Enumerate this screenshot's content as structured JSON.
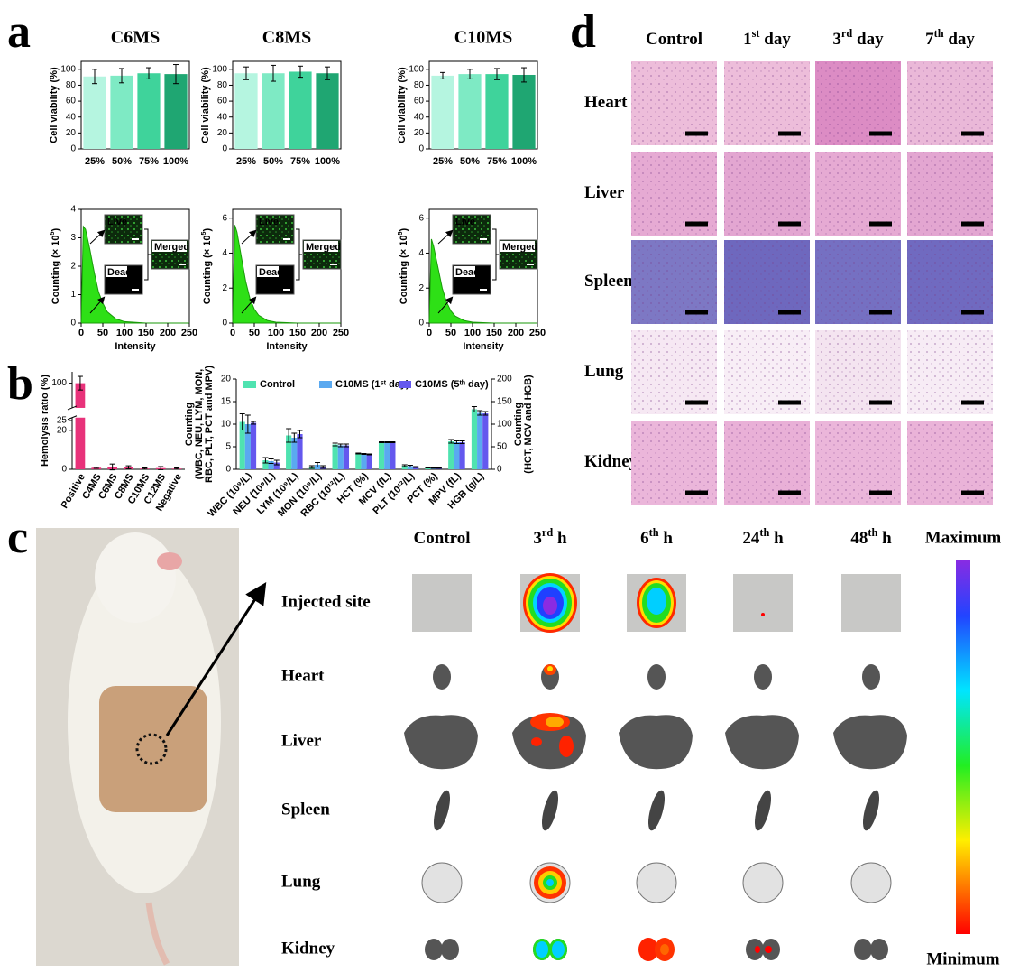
{
  "panel_labels": [
    "a",
    "b",
    "c",
    "d"
  ],
  "chart_data": [
    {
      "type": "bar",
      "title": "C6MS",
      "ylabel": "Cell viability (%)",
      "categories": [
        "25%",
        "50%",
        "75%",
        "100%"
      ],
      "values": [
        91,
        92,
        95,
        94
      ],
      "errors": [
        9,
        9,
        7,
        12
      ],
      "colors": [
        "#b5f5e0",
        "#7eeac4",
        "#3fd39b",
        "#1fa672"
      ],
      "ylim": [
        0,
        110
      ],
      "yticks": [
        0,
        20,
        40,
        60,
        80,
        100
      ]
    },
    {
      "type": "bar",
      "title": "C8MS",
      "ylabel": "Cell viability (%)",
      "categories": [
        "25%",
        "50%",
        "75%",
        "100%"
      ],
      "values": [
        95,
        95,
        97,
        95
      ],
      "errors": [
        8,
        10,
        7,
        8
      ],
      "colors": [
        "#b5f5e0",
        "#7eeac4",
        "#3fd39b",
        "#1fa672"
      ],
      "ylim": [
        0,
        110
      ],
      "yticks": [
        0,
        20,
        40,
        60,
        80,
        100
      ]
    },
    {
      "type": "bar",
      "title": "C10MS",
      "ylabel": "Cell viability (%)",
      "categories": [
        "25%",
        "50%",
        "75%",
        "100%"
      ],
      "values": [
        92,
        94,
        94,
        93
      ],
      "errors": [
        4,
        6,
        7,
        9
      ],
      "colors": [
        "#b5f5e0",
        "#7eeac4",
        "#3fd39b",
        "#1fa672"
      ],
      "ylim": [
        0,
        110
      ],
      "yticks": [
        0,
        20,
        40,
        60,
        80,
        100
      ]
    },
    {
      "type": "area",
      "ylabel": [
        "Counting (× 10",
        "5",
        ")"
      ],
      "xlabel": "Intensity",
      "annotations": [
        "Live",
        "Dead",
        "Merged"
      ],
      "color": "#2ee016",
      "x": [
        0,
        5,
        10,
        20,
        30,
        40,
        50,
        60,
        80,
        100,
        150,
        200,
        250
      ],
      "values": [
        0,
        3.4,
        3.3,
        2.6,
        1.8,
        1.1,
        0.7,
        0.4,
        0.15,
        0.05,
        0,
        0,
        0
      ],
      "xlim": [
        0,
        250
      ],
      "xticks": [
        0,
        50,
        100,
        150,
        200,
        250
      ],
      "ylim": [
        0,
        4
      ],
      "yticks": [
        0,
        1,
        2,
        3,
        4
      ]
    },
    {
      "type": "area",
      "ylabel": [
        "Counting (× 10",
        "5",
        ")"
      ],
      "xlabel": "Intensity",
      "annotations": [
        "Live",
        "Dead",
        "Merged"
      ],
      "color": "#2ee016",
      "x": [
        0,
        5,
        10,
        20,
        30,
        40,
        50,
        60,
        80,
        100,
        150,
        200,
        250
      ],
      "values": [
        0,
        5.6,
        5.2,
        3.8,
        2.4,
        1.4,
        0.8,
        0.45,
        0.15,
        0.05,
        0,
        0,
        0
      ],
      "xlim": [
        0,
        250
      ],
      "xticks": [
        0,
        50,
        100,
        150,
        200,
        250
      ],
      "ylim": [
        0,
        6.5
      ],
      "yticks": [
        0,
        2,
        4,
        6
      ]
    },
    {
      "type": "area",
      "ylabel": [
        "Counting (× 10",
        "5",
        ")"
      ],
      "xlabel": "Intensity",
      "annotations": [
        "Live",
        "Dead",
        "Merged"
      ],
      "color": "#2ee016",
      "x": [
        0,
        5,
        10,
        20,
        30,
        40,
        50,
        60,
        80,
        100,
        150,
        200,
        250
      ],
      "values": [
        0,
        4.8,
        4.4,
        3.2,
        2.0,
        1.2,
        0.7,
        0.4,
        0.15,
        0.05,
        0,
        0,
        0
      ],
      "xlim": [
        0,
        250
      ],
      "xticks": [
        0,
        50,
        100,
        150,
        200,
        250
      ],
      "ylim": [
        0,
        6.5
      ],
      "yticks": [
        0,
        2,
        4,
        6
      ]
    },
    {
      "type": "broken_bar",
      "ylabel": "Hemolysis ratio (%)",
      "categories": [
        "Positive",
        "C4MS",
        "C6MS",
        "C8MS",
        "C10MS",
        "C12MS",
        "Negative"
      ],
      "values": [
        100,
        0.8,
        1.2,
        1,
        0.4,
        0.6,
        0.4
      ],
      "errors": [
        3,
        0.3,
        1.5,
        0.8,
        0.3,
        0.8,
        0.3
      ],
      "color": "#e8327a",
      "ylim": [
        0,
        105
      ],
      "ybreak": [
        25,
        90
      ],
      "yticks": [
        0,
        20,
        25,
        100
      ]
    },
    {
      "type": "grouped_bar",
      "ylabel": [
        "Counting",
        "(WBC, NEU, LYM, MON,",
        "RBC, PLT, PCT and MPV)"
      ],
      "y2label": [
        "Counting",
        "(HCT, MCV and HGB)"
      ],
      "categories": [
        "WBC (10⁹/L)",
        "NEU (10⁹/L)",
        "LYM (10⁹/L)",
        "MON (10⁹/L)",
        "RBC (10¹²/L)",
        "HCT (%)",
        "MCV (fL)",
        "PLT (10¹²/L)",
        "PCT (%)",
        "MPV (fL)",
        "HGB (g/L)"
      ],
      "category_axis": [
        "y",
        "y",
        "y",
        "y",
        "y",
        "y2",
        "y2",
        "y",
        "y",
        "y",
        "y2"
      ],
      "series": [
        {
          "name": "Control",
          "color": "#4fe3b0",
          "values": [
            10.5,
            2,
            7.5,
            0.5,
            5.5,
            35,
            60,
            0.8,
            0.4,
            6.2,
            133
          ],
          "errors": [
            1.8,
            0.6,
            1.5,
            0.3,
            0.3,
            1,
            1,
            0.2,
            0.1,
            0.4,
            6
          ]
        },
        {
          "name": "C10MS (1ˢᵗ day)",
          "color": "#5aa9f0",
          "values": [
            10,
            1.8,
            7,
            1,
            5.3,
            34,
            60,
            0.7,
            0.3,
            6,
            125
          ],
          "errors": [
            2,
            0.5,
            1,
            0.5,
            0.3,
            1,
            1,
            0.2,
            0.1,
            0.3,
            5
          ]
        },
        {
          "name": "C10MS (5ᵗʰ day)",
          "color": "#6458ee",
          "values": [
            10.3,
            1.5,
            7.8,
            0.5,
            5.3,
            33,
            60,
            0.5,
            0.3,
            6,
            124
          ],
          "errors": [
            0.3,
            0.5,
            0.8,
            0.3,
            0.3,
            1,
            1,
            0.1,
            0.1,
            0.3,
            4
          ]
        }
      ],
      "ylim": [
        0,
        20
      ],
      "yticks": [
        0,
        5,
        10,
        15,
        20
      ],
      "y2lim": [
        0,
        200
      ],
      "y2ticks": [
        0,
        50,
        100,
        150,
        200
      ],
      "legend": "top"
    }
  ],
  "histology": {
    "columns": [
      [
        "Control"
      ],
      [
        "1",
        "st",
        " day"
      ],
      [
        "3",
        "rd",
        " day"
      ],
      [
        "7",
        "th",
        " day"
      ]
    ],
    "rows": [
      "Heart",
      "Liver",
      "Spleen",
      "Lung",
      "Kidney"
    ]
  },
  "imaging": {
    "columns": [
      [
        "Control"
      ],
      [
        "3",
        "rd",
        " h"
      ],
      [
        "6",
        "th",
        " h"
      ],
      [
        "24",
        "th",
        " h"
      ],
      [
        "48",
        "th",
        " h"
      ]
    ],
    "rows": [
      "Injected site",
      "Heart",
      "Liver",
      "Spleen",
      "Lung",
      "Kidney"
    ],
    "colorbar": {
      "max": "Maximum",
      "min": "Minimum"
    }
  }
}
